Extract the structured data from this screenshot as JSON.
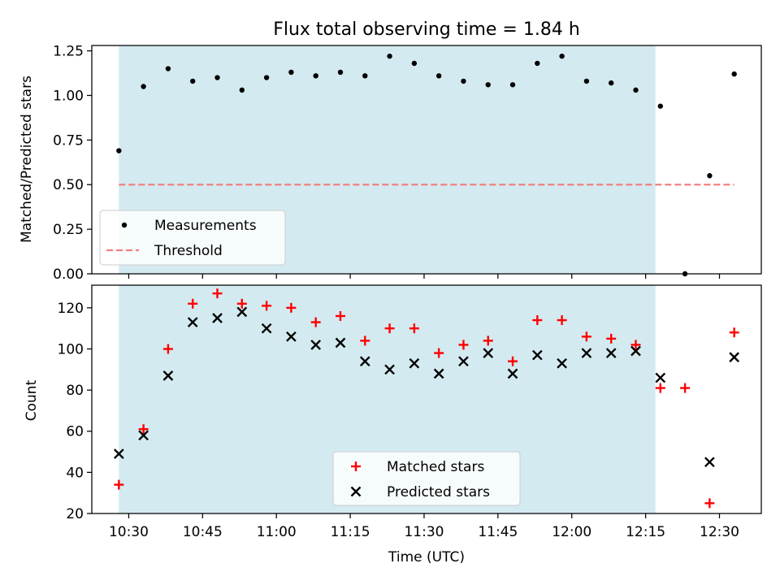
{
  "chart_data": [
    {
      "type": "scatter",
      "title": "Flux total observing time = 1.84 h",
      "xlabel": "",
      "ylabel": "Matched/Predicted stars",
      "ylim": [
        0.0,
        1.28
      ],
      "yticks": [
        "0.00",
        "0.25",
        "0.50",
        "0.75",
        "1.00",
        "1.25"
      ],
      "shaded_span": [
        "10:28",
        "12:17"
      ],
      "shade_color": "#d3eaf0",
      "legend_position": "lower-left",
      "x": [
        "10:28",
        "10:33",
        "10:38",
        "10:43",
        "10:48",
        "10:53",
        "10:58",
        "11:03",
        "11:08",
        "11:13",
        "11:18",
        "11:23",
        "11:28",
        "11:33",
        "11:38",
        "11:43",
        "11:48",
        "11:53",
        "11:58",
        "12:03",
        "12:08",
        "12:13",
        "12:18",
        "12:23",
        "12:28",
        "12:33"
      ],
      "series": [
        {
          "name": "Measurements",
          "marker": "dot",
          "color": "#000000",
          "values": [
            0.69,
            1.05,
            1.15,
            1.08,
            1.1,
            1.03,
            1.1,
            1.13,
            1.11,
            1.13,
            1.11,
            1.22,
            1.18,
            1.11,
            1.08,
            1.06,
            1.06,
            1.18,
            1.22,
            1.08,
            1.07,
            1.03,
            0.94,
            0.0,
            0.55,
            1.12
          ]
        },
        {
          "name": "Threshold",
          "style": "dashed-line",
          "color": "#f08080",
          "x": [
            "10:28",
            "12:33"
          ],
          "values": [
            0.5,
            0.5
          ]
        }
      ]
    },
    {
      "type": "scatter",
      "title": "",
      "xlabel": "Time (UTC)",
      "ylabel": "Count",
      "ylim": [
        20,
        131
      ],
      "yticks": [
        "20",
        "40",
        "60",
        "80",
        "100",
        "120"
      ],
      "xticks": [
        "10:30",
        "10:45",
        "11:00",
        "11:15",
        "11:30",
        "11:45",
        "12:00",
        "12:15",
        "12:30"
      ],
      "shaded_span": [
        "10:28",
        "12:17"
      ],
      "shade_color": "#d3eaf0",
      "legend_position": "lower-center",
      "x": [
        "10:28",
        "10:33",
        "10:38",
        "10:43",
        "10:48",
        "10:53",
        "10:58",
        "11:03",
        "11:08",
        "11:13",
        "11:18",
        "11:23",
        "11:28",
        "11:33",
        "11:38",
        "11:43",
        "11:48",
        "11:53",
        "11:58",
        "12:03",
        "12:08",
        "12:13",
        "12:18",
        "12:23",
        "12:28",
        "12:33"
      ],
      "series": [
        {
          "name": "Matched stars",
          "marker": "plus",
          "color": "#ff0000",
          "values": [
            34,
            61,
            100,
            122,
            127,
            122,
            121,
            120,
            113,
            116,
            104,
            110,
            110,
            98,
            102,
            104,
            94,
            114,
            114,
            106,
            105,
            102,
            81,
            81,
            25,
            108
          ]
        },
        {
          "name": "Predicted stars",
          "marker": "x",
          "color": "#000000",
          "values": [
            49,
            58,
            87,
            113,
            115,
            118,
            110,
            106,
            102,
            103,
            94,
            90,
            93,
            88,
            94,
            98,
            88,
            97,
            93,
            98,
            98,
            99,
            86,
            null,
            45,
            96
          ]
        }
      ]
    }
  ]
}
